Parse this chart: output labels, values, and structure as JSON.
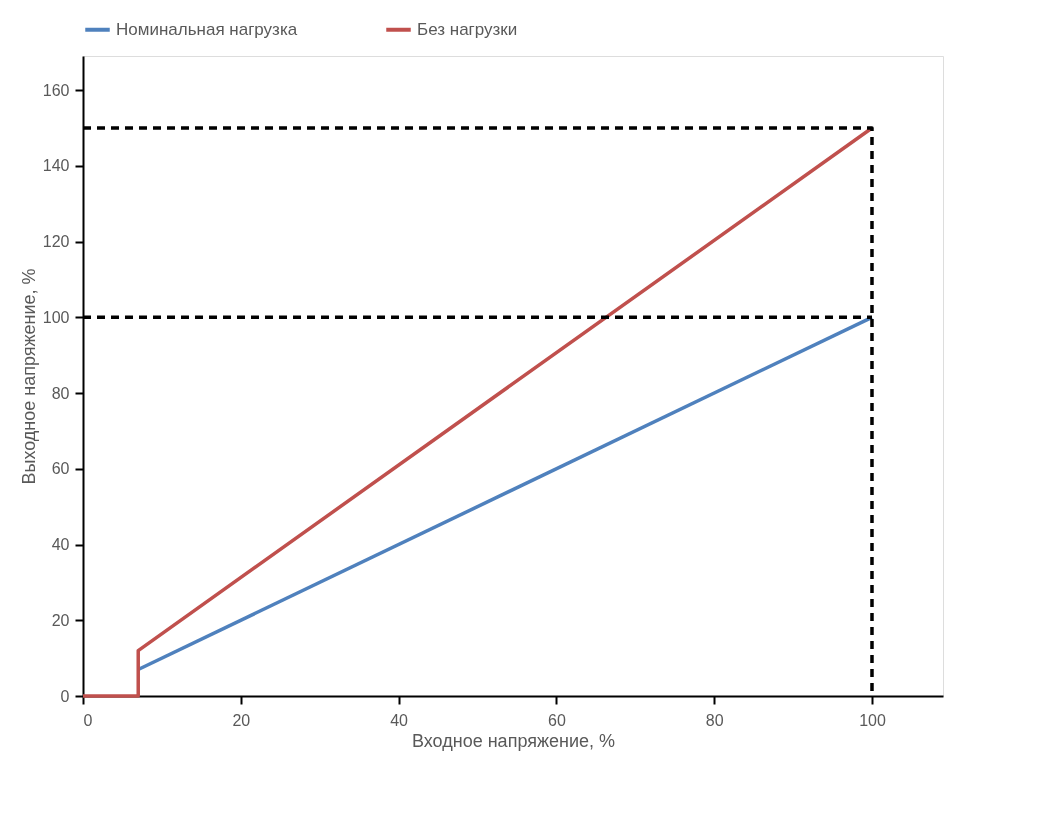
{
  "chart_data": {
    "type": "line",
    "xlabel": "Входное напряжение, %",
    "ylabel": "Выходное напряжение, %",
    "series": [
      {
        "name": "Номинальная нагрузка",
        "color": "#4f81bd",
        "x": [
          7,
          100
        ],
        "values": [
          7,
          100
        ]
      },
      {
        "name": "Без нагрузки",
        "color": "#c0504d",
        "x": [
          0,
          7,
          7,
          100
        ],
        "values": [
          0,
          0,
          12,
          150
        ]
      },
      {
        "color": "#000000",
        "line_style": "dashed",
        "x": [
          0,
          100,
          100
        ],
        "values": [
          150,
          150,
          0
        ]
      },
      {
        "color": "#000000",
        "line_style": "dashed",
        "x": [
          0,
          100
        ],
        "values": [
          100,
          100
        ]
      }
    ],
    "xlim": [
      0,
      109
    ],
    "ylim": [
      0,
      169
    ],
    "xticks": [
      0,
      20,
      40,
      60,
      80,
      100
    ],
    "yticks": [
      0,
      20,
      40,
      60,
      80,
      100,
      120,
      140,
      160
    ],
    "grid": false,
    "legend": "top",
    "marker": "none",
    "line_style": "solid"
  }
}
